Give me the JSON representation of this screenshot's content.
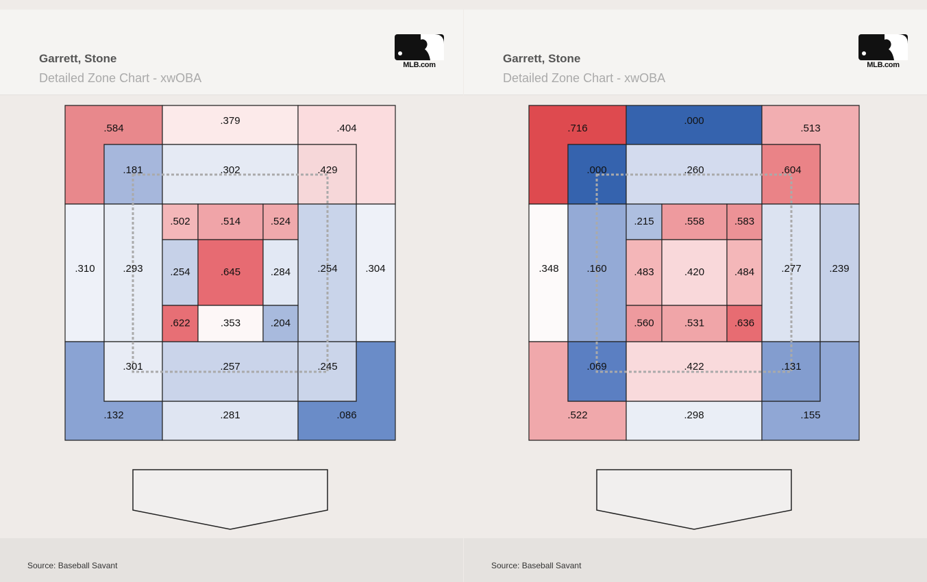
{
  "charts": [
    {
      "player": "Garrett, Stone",
      "subtitle": "Detailed Zone Chart - xwOBA",
      "logo_text": "MLB.com",
      "source": "Source: Baseball Savant"
    },
    {
      "player": "Garrett, Stone",
      "subtitle": "Detailed Zone Chart - xwOBA",
      "logo_text": "MLB.com",
      "source": "Source: Baseball Savant"
    }
  ],
  "chart_data": [
    {
      "type": "heatmap",
      "title": "Detailed Zone Chart - xwOBA",
      "zones": {
        "outer": {
          "top_left": ".584",
          "top": ".379",
          "top_right": ".404",
          "left": ".310",
          "right": ".304",
          "bottom_left": ".132",
          "bottom": ".281",
          "bottom_right": ".086"
        },
        "shadow": {
          "top_left": ".181",
          "top": ".302",
          "top_right": ".429",
          "left": ".293",
          "right": ".254",
          "bottom_left": ".301",
          "bottom": ".257",
          "bottom_right": ".245"
        },
        "heart": [
          [
            ".502",
            ".514",
            ".524"
          ],
          [
            ".254",
            ".645",
            ".284"
          ],
          [
            ".622",
            ".353",
            ".204"
          ]
        ]
      },
      "colors": {
        "outer": {
          "top_left": "#e8888c",
          "top": "#fceaea",
          "top_right": "#fbdcde",
          "left": "#eef1f8",
          "right": "#eef1f8",
          "bottom_left": "#8aa3d3",
          "bottom": "#dfe5f2",
          "bottom_right": "#6a8cc8"
        },
        "shadow": {
          "top_left": "#a6b7dc",
          "top": "#e5eaf4",
          "top_right": "#f6d7d9",
          "left": "#e7ecf5",
          "right": "#c9d4ea",
          "bottom_left": "#e8ecf5",
          "bottom": "#cad4ea",
          "bottom_right": "#cbd5ea"
        },
        "heart": [
          [
            "#f4b7b9",
            "#f0a4a8",
            "#f0a9ac"
          ],
          [
            "#c6d1e8",
            "#e76b72",
            "#e2e8f4"
          ],
          [
            "#e76f75",
            "#fdf7f7",
            "#a8badd"
          ]
        ]
      }
    },
    {
      "type": "heatmap",
      "title": "Detailed Zone Chart - xwOBA",
      "zones": {
        "outer": {
          "top_left": ".716",
          "top": ".000",
          "top_right": ".513",
          "left": ".348",
          "right": ".239",
          "bottom_left": ".522",
          "bottom": ".298",
          "bottom_right": ".155"
        },
        "shadow": {
          "top_left": ".000",
          "top": ".260",
          "top_right": ".604",
          "left": ".160",
          "right": ".277",
          "bottom_left": ".069",
          "bottom": ".422",
          "bottom_right": ".131"
        },
        "heart": [
          [
            ".215",
            ".558",
            ".583"
          ],
          [
            ".483",
            ".420",
            ".484"
          ],
          [
            ".560",
            ".531",
            ".636"
          ]
        ]
      },
      "colors": {
        "outer": {
          "top_left": "#de4a4f",
          "top": "#3563ae",
          "top_right": "#f2aeb1",
          "left": "#fdfafa",
          "right": "#c6d1e8",
          "bottom_left": "#f0a8ab",
          "bottom": "#eaeef6",
          "bottom_right": "#90a7d5"
        },
        "shadow": {
          "top_left": "#3563ae",
          "top": "#d3dbee",
          "top_right": "#ea8387",
          "left": "#94aad6",
          "right": "#dce3f1",
          "bottom_left": "#5b7fc2",
          "bottom": "#f9dadc",
          "bottom_right": "#839dcf"
        },
        "heart": [
          [
            "#aebfe0",
            "#ee9a9e",
            "#ec9296"
          ],
          [
            "#f4b6b8",
            "#f9d8da",
            "#f4b7b9"
          ],
          [
            "#ee9a9e",
            "#f0a5a8",
            "#e76c72"
          ]
        ]
      }
    }
  ]
}
